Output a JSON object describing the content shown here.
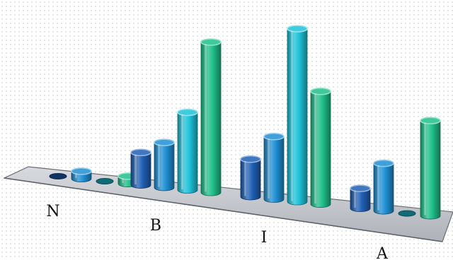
{
  "chart_data": {
    "type": "bar",
    "categories": [
      "N",
      "B",
      "I",
      "A"
    ],
    "series": [
      {
        "values": [
          0,
          13,
          15,
          8
        ],
        "color": "#1f5fb4"
      },
      {
        "values": [
          3,
          18,
          25,
          19
        ],
        "color": "#1f8fd3"
      },
      {
        "values": [
          0,
          31,
          69,
          0
        ],
        "color": "#1ec2d9"
      },
      {
        "values": [
          3,
          60,
          45,
          38
        ],
        "color": "#1fbf8a"
      }
    ],
    "ylim": [
      0,
      70
    ],
    "grid": false,
    "legend": "none",
    "style": "3d-cylinder"
  }
}
